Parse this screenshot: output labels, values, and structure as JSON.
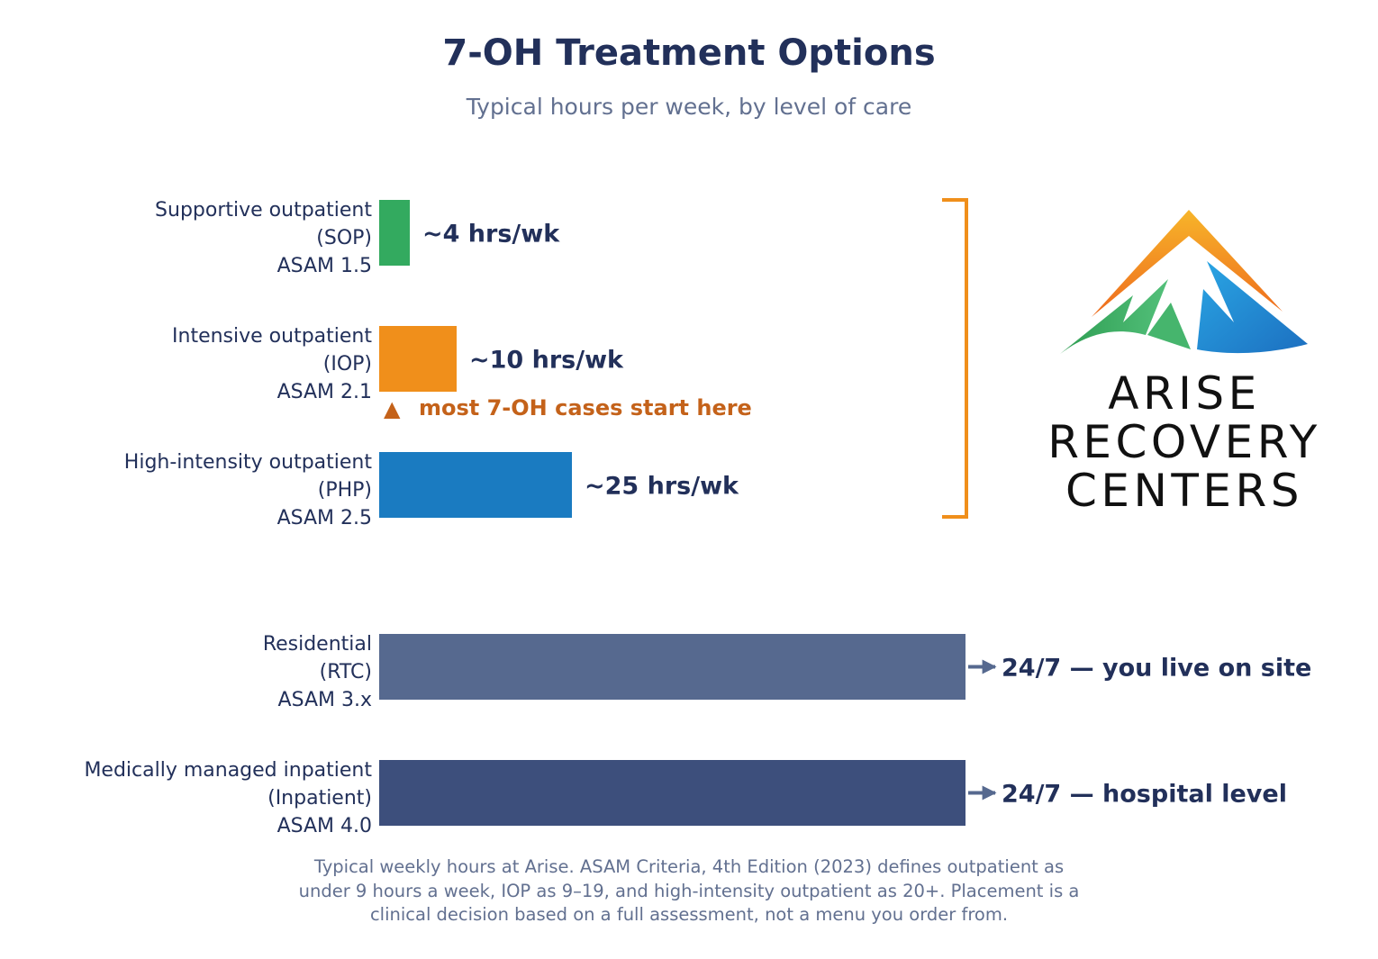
{
  "title": "7-OH Treatment Options",
  "subtitle": "Typical hours per week, by level of care",
  "chart_data": {
    "type": "bar",
    "orientation": "horizontal",
    "xlim": [
      0,
      40
    ],
    "categories": [
      [
        "Supportive outpatient",
        "(SOP)",
        "ASAM 1.5"
      ],
      [
        "Intensive outpatient",
        "(IOP)",
        "ASAM 2.1"
      ],
      [
        "High-intensity outpatient",
        "(PHP)",
        "ASAM 2.5"
      ],
      [
        "Residential",
        "(RTC)",
        "ASAM 3.x"
      ],
      [
        "Medically managed inpatient",
        "(Inpatient)",
        "ASAM 4.0"
      ]
    ],
    "values": [
      4,
      10,
      25,
      24,
      24
    ],
    "value_units": [
      "hrs/wk",
      "hrs/wk",
      "hrs/wk",
      "hrs/day",
      "hrs/day"
    ],
    "value_labels": [
      "~4 hrs/wk",
      "~10 hrs/wk",
      "~25 hrs/wk",
      "24/7 — you live on site",
      "24/7 — hospital level"
    ],
    "colors": [
      "#33aa5f",
      "#f08f1b",
      "#1a7bc1",
      "#56698f",
      "#3d4f7c"
    ],
    "annotation": {
      "marker": "▲",
      "text": "most 7-OH cases start here",
      "color": "#c4621a"
    },
    "bracket_color": "#f08f1b",
    "arrow_color": "#56698f"
  },
  "footnote": [
    "Typical weekly hours at Arise. ASAM Criteria, 4th Edition (2023) defines outpatient as",
    "under 9 hours a week, IOP as 9–19, and high-intensity outpatient as 20+. Placement is a",
    "clinical decision based on a full assessment, not a menu you order from."
  ],
  "logo": {
    "line1": "ARISE",
    "line2": "RECOVERY",
    "line3": "CENTERS"
  }
}
